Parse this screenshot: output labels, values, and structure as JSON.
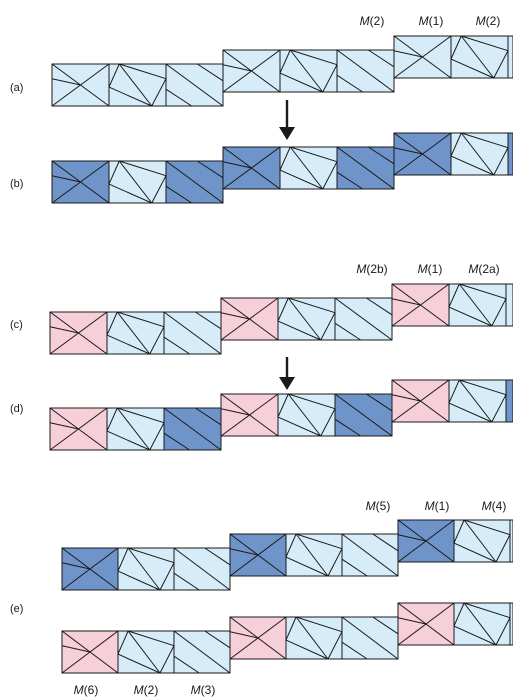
{
  "colors": {
    "light": "#d6ecf8",
    "blue": "#6f94c9",
    "pink": "#f6cfd8",
    "stroke": "#1a1a1a"
  },
  "panel_labels": [
    "(a)",
    "(b)",
    "(c)",
    "(d)",
    "(e)"
  ],
  "site_labels": {
    "top_a": [
      {
        "m": "M",
        "arg": "(2)"
      },
      {
        "m": "M",
        "arg": "(1)"
      },
      {
        "m": "M",
        "arg": "(2)"
      }
    ],
    "top_c": [
      {
        "m": "M",
        "arg": "(2b)"
      },
      {
        "m": "M",
        "arg": "(1)"
      },
      {
        "m": "M",
        "arg": "(2a)"
      }
    ],
    "top_e": [
      {
        "m": "M",
        "arg": "(5)"
      },
      {
        "m": "M",
        "arg": "(1)"
      },
      {
        "m": "M",
        "arg": "(4)"
      }
    ],
    "bottom_e": [
      {
        "m": "M",
        "arg": "(6)"
      },
      {
        "m": "M",
        "arg": "(2)"
      },
      {
        "m": "M",
        "arg": "(3)"
      }
    ]
  },
  "rows": [
    {
      "name": "row-a",
      "colors": [
        "light",
        "light",
        "light",
        "light",
        "light",
        "light",
        "light",
        "light",
        "light"
      ]
    },
    {
      "name": "row-b",
      "colors": [
        "blue",
        "light",
        "blue",
        "blue",
        "light",
        "blue",
        "blue",
        "light",
        "blue"
      ]
    },
    {
      "name": "row-c",
      "colors": [
        "pink",
        "light",
        "light",
        "pink",
        "light",
        "light",
        "pink",
        "light",
        "light"
      ]
    },
    {
      "name": "row-d",
      "colors": [
        "pink",
        "light",
        "blue",
        "pink",
        "light",
        "blue",
        "pink",
        "light",
        "blue"
      ]
    },
    {
      "name": "row-e1",
      "colors": [
        "blue",
        "light",
        "light",
        "blue",
        "light",
        "light",
        "blue",
        "light",
        "light"
      ]
    },
    {
      "name": "row-e2",
      "colors": [
        "pink",
        "light",
        "light",
        "pink",
        "light",
        "light",
        "pink",
        "light",
        "light"
      ]
    }
  ],
  "arrows": [
    "arrow-a-to-b",
    "arrow-c-to-d"
  ]
}
